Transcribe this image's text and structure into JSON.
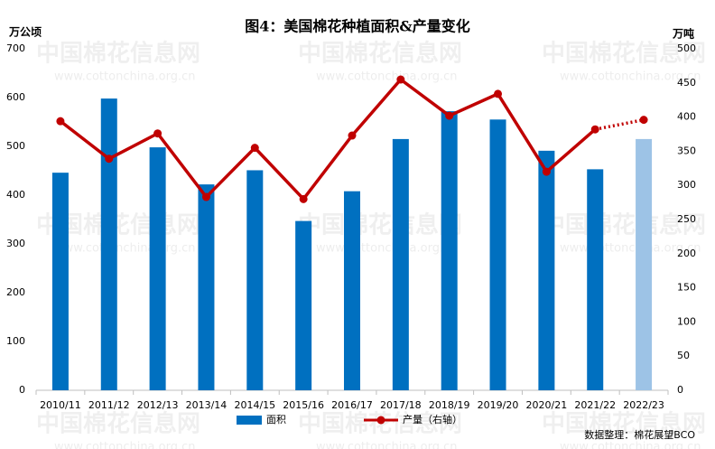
{
  "chart_data": {
    "type": "bar-line",
    "title": "图4：美国棉花种植面积&产量变化",
    "y_label": "万公顷",
    "y2_label": "万吨",
    "categories": [
      "2010/11",
      "2011/12",
      "2012/13",
      "2013/14",
      "2014/15",
      "2015/16",
      "2016/17",
      "2017/18",
      "2018/19",
      "2019/20",
      "2020/21",
      "2021/22",
      "2022/23"
    ],
    "series": [
      {
        "name": "面积",
        "type": "bar",
        "color": "#0070c0",
        "colors": [
          "#0070c0",
          "#0070c0",
          "#0070c0",
          "#0070c0",
          "#0070c0",
          "#0070c0",
          "#0070c0",
          "#0070c0",
          "#0070c0",
          "#0070c0",
          "#0070c0",
          "#0070c0",
          "#9dc3e6"
        ],
        "values": [
          446,
          598,
          498,
          422,
          451,
          347,
          408,
          515,
          572,
          555,
          491,
          453,
          515
        ]
      },
      {
        "name": "产量（右轴）",
        "type": "line",
        "axis": "y2",
        "color": "#c00000",
        "segment_styles": [
          "solid",
          "solid",
          "solid",
          "solid",
          "solid",
          "solid",
          "solid",
          "solid",
          "solid",
          "solid",
          "solid",
          "dotted"
        ],
        "values": [
          394,
          339,
          376,
          283,
          355,
          280,
          373,
          455,
          402,
          434,
          320,
          382,
          396
        ]
      }
    ],
    "ylim": [
      0,
      700
    ],
    "yticks": [
      0,
      100,
      200,
      300,
      400,
      500,
      600,
      700
    ],
    "y2lim": [
      0,
      500
    ],
    "y2ticks": [
      0,
      50,
      100,
      150,
      200,
      250,
      300,
      350,
      400,
      450,
      500
    ],
    "legend": "bottom",
    "source": "数据整理：棉花展望BCO",
    "watermark": {
      "text": "中国棉花信息网",
      "url": "www.cottonchina.org.cn"
    }
  }
}
